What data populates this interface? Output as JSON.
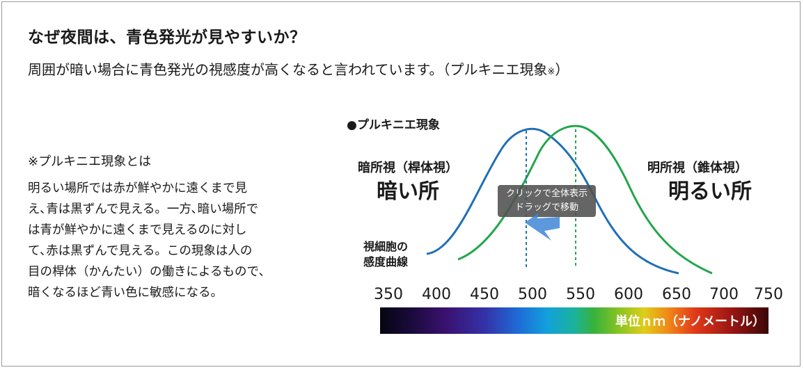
{
  "header": {
    "title": "なぜ夜間は、青色発光が見やすいか？",
    "subtitle": "周囲が暗い場合に青色発光の視感度が高くなると言われています。（プルキニエ現象",
    "subtitle_mark": "※",
    "subtitle_close": "）"
  },
  "note": {
    "title": "※プルキニエ現象とは",
    "lines": [
      "明るい場所では赤が鮮やかに遠くまで見",
      "え､青は黒ずんで見える。一方､暗い場所で",
      "は青が鮮やかに遠くまで見えるのに対し",
      "て､赤は黒ずんで見える。この現象は人の",
      "目の桿体（かんたい）の働きによるもので､",
      "暗くなるほど青い色に敏感になる。"
    ]
  },
  "diagram": {
    "heading": "●プルキニエ現象",
    "scotopic_label": "暗所視（桿体視）",
    "scotopic_big": "暗い所",
    "photopic_label": "明所視（錐体視）",
    "photopic_big": "明るい所",
    "curve_label_1": "視細胞の",
    "curve_label_2": "感度曲線",
    "scale_ticks": [
      "350",
      "400",
      "450",
      "500",
      "550",
      "600",
      "650",
      "700",
      "750"
    ],
    "scale_unit": "単位ｎｍ（ナノメートル）",
    "scotopic_peak": "500",
    "photopic_peak": "550",
    "colors": {
      "scotopic_curve": "#1f6fb5",
      "photopic_curve": "#22a64a"
    }
  },
  "overlay": {
    "line1": "クリックで全体表示",
    "line2": "ドラッグで移動"
  }
}
